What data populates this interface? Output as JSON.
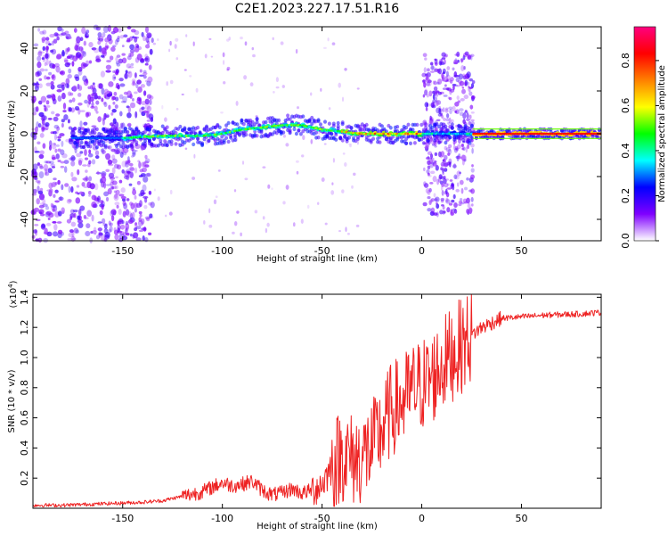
{
  "title": "C2E1.2023.227.17.51.R16",
  "chart_data": [
    {
      "type": "heatmap",
      "xlabel": "Height of straight line (km)",
      "ylabel": "Frequency (Hz)",
      "xlim": [
        -195,
        90
      ],
      "ylim": [
        -50,
        50
      ],
      "xticks": [
        -150,
        -100,
        -50,
        0,
        50
      ],
      "yticks": [
        -40,
        -20,
        0,
        20,
        40
      ],
      "ridge": {
        "x": [
          -170,
          -150,
          -130,
          -110,
          -100,
          -90,
          -80,
          -70,
          -60,
          -50,
          -40,
          -30,
          -20,
          -10,
          0,
          25,
          90
        ],
        "frequency": [
          -2,
          -2,
          -1,
          -1,
          0,
          2,
          3,
          4,
          4,
          2,
          1,
          0,
          0,
          0,
          0,
          0,
          0
        ]
      },
      "colorbar": {
        "label": "Normalized spectral amplitude",
        "range": [
          0,
          0.95
        ],
        "ticks": [
          0.0,
          0.2,
          0.4,
          0.6,
          0.8
        ],
        "colormap": [
          "#ffffff",
          "#7f00ff",
          "#0000ff",
          "#00ffff",
          "#00ff00",
          "#ffff00",
          "#ff8000",
          "#ff0000",
          "#ff0080"
        ]
      }
    },
    {
      "type": "line",
      "xlabel": "Height of straight line (km)",
      "ylabel": "SNR (10 * v/v)",
      "scale_label": "(x10",
      "scale_exponent": "4",
      "scale_close": ")",
      "xlim": [
        -195,
        90
      ],
      "ylim": [
        0,
        1.42
      ],
      "xticks": [
        -150,
        -100,
        -50,
        0,
        50
      ],
      "yticks": [
        0.2,
        0.4,
        0.6,
        0.8,
        1.0,
        1.2,
        1.4
      ],
      "series": [
        {
          "color": "#ee2222",
          "x": [
            -195,
            -180,
            -160,
            -140,
            -130,
            -120,
            -110,
            -105,
            -100,
            -95,
            -90,
            -85,
            -80,
            -75,
            -70,
            -65,
            -60,
            -55,
            -50,
            -45,
            -40,
            -35,
            -30,
            -25,
            -20,
            -15,
            -10,
            -5,
            0,
            5,
            10,
            15,
            20,
            25,
            30,
            40,
            60,
            80,
            90
          ],
          "values": [
            0.02,
            0.02,
            0.03,
            0.04,
            0.05,
            0.08,
            0.11,
            0.14,
            0.17,
            0.15,
            0.16,
            0.18,
            0.12,
            0.09,
            0.1,
            0.13,
            0.1,
            0.12,
            0.16,
            0.28,
            0.36,
            0.32,
            0.34,
            0.4,
            0.52,
            0.66,
            0.7,
            0.78,
            0.82,
            0.86,
            0.95,
            1.02,
            1.08,
            1.15,
            1.2,
            1.26,
            1.28,
            1.29,
            1.3
          ]
        }
      ]
    }
  ]
}
